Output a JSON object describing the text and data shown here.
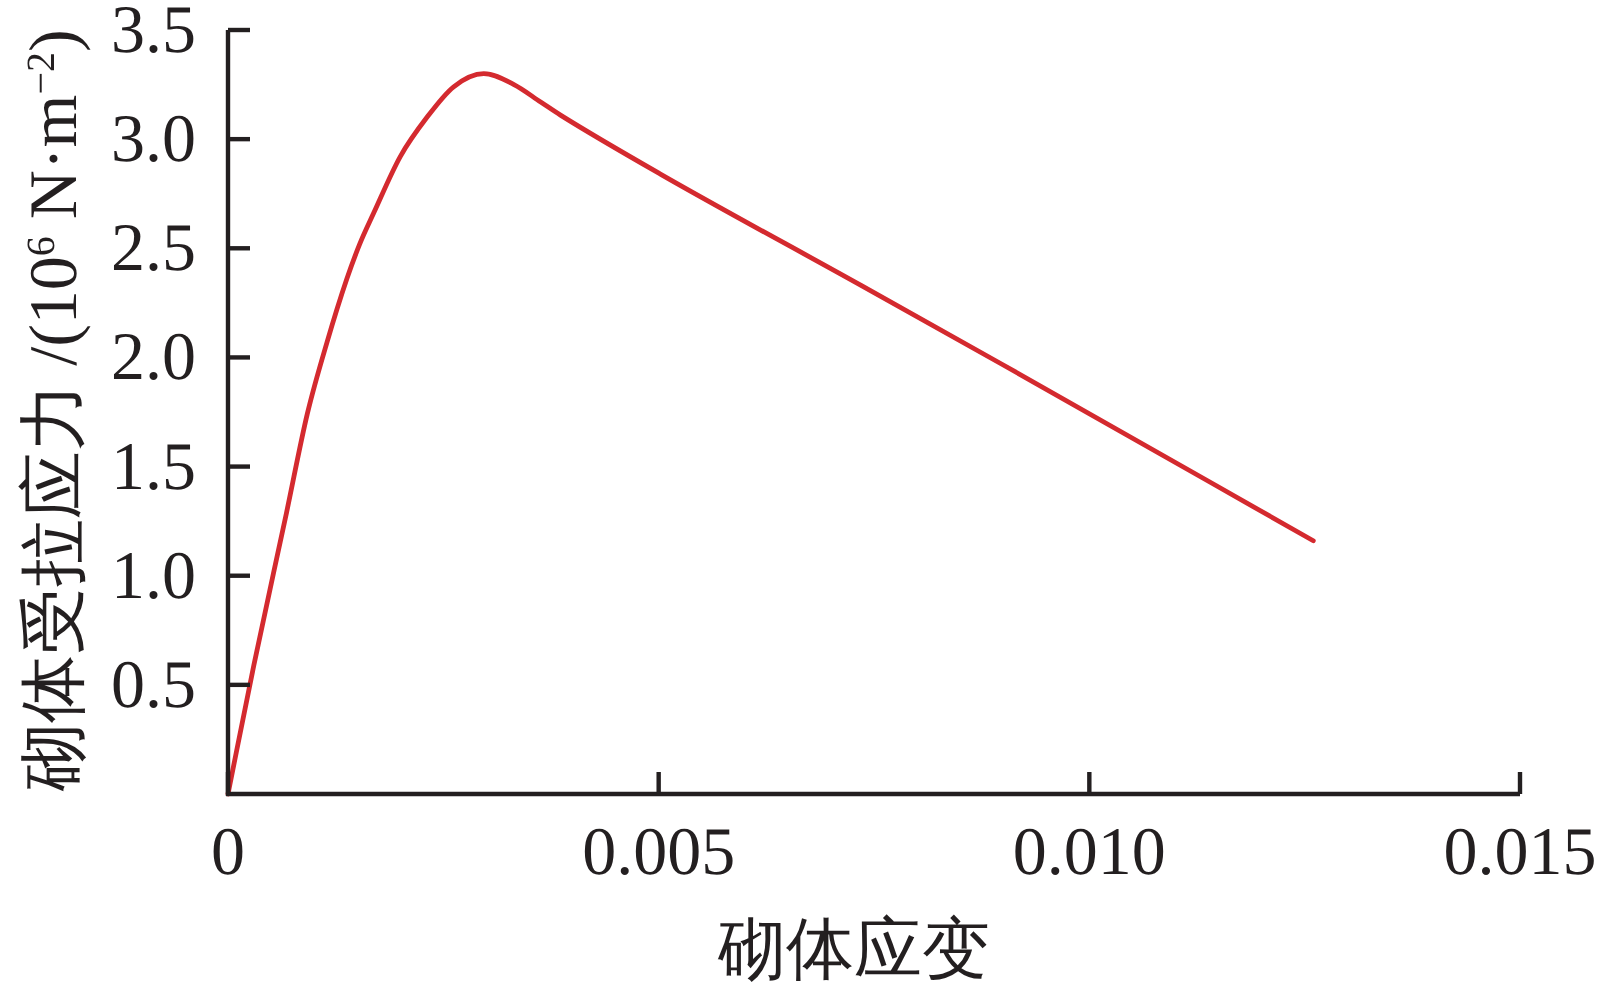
{
  "chart_data": {
    "type": "line",
    "xlabel": "砌体应变",
    "ylabel": "砌体受拉应力 /(10$^{6}$ N·m$^{−2}$)",
    "x": [
      0,
      0.0003,
      0.00068,
      0.00092,
      0.00115,
      0.00138,
      0.00153,
      0.00169,
      0.002,
      0.00231,
      0.00262,
      0.00297,
      0.00332,
      0.00363,
      0.00386,
      0.00502,
      0.00735,
      0.00898,
      0.0126
    ],
    "values": [
      0,
      0.59,
      1.29,
      1.74,
      2.07,
      2.36,
      2.52,
      2.66,
      2.92,
      3.1,
      3.24,
      3.3,
      3.25,
      3.17,
      3.11,
      2.84,
      2.33,
      1.97,
      1.16
    ],
    "color": "#d42a2f",
    "line_style": "solid",
    "xlim": [
      0,
      0.015
    ],
    "ylim": [
      0,
      3.5
    ],
    "xticks": [
      0,
      0.005,
      {
        "value": 0.01,
        "label": "0.010"
      },
      0.015
    ],
    "yticks": [
      0.5,
      {
        "value": 1,
        "label": "1.0"
      },
      1.5,
      {
        "value": 2,
        "label": "2.0"
      },
      2.5,
      {
        "value": 3,
        "label": "3.0"
      },
      3.5
    ]
  }
}
